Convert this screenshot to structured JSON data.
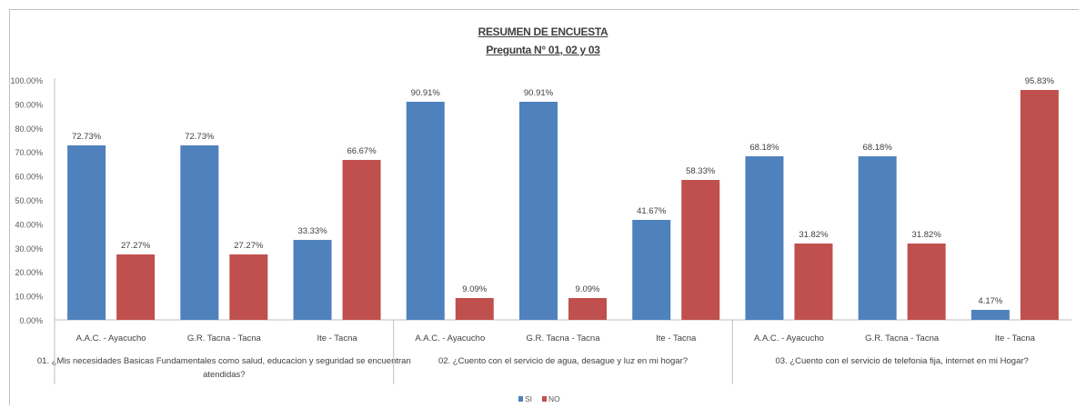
{
  "chart_data": {
    "type": "bar",
    "title": "RESUMEN DE ENCUESTA",
    "subtitle": "Pregunta N° 01, 02 y 03",
    "ylim": [
      0,
      100
    ],
    "yticks": [
      "0.00%",
      "10.00%",
      "20.00%",
      "30.00%",
      "40.00%",
      "50.00%",
      "60.00%",
      "70.00%",
      "80.00%",
      "90.00%",
      "100.00%"
    ],
    "groups": [
      {
        "question": [
          "01. ¿Mis necesidades Basicas Fundamentales como salud, educacion y seguridad se encuentran",
          "atendidas?"
        ],
        "categories": [
          "A.A.C. - Ayacucho",
          "G.R. Tacna - Tacna",
          "Ite - Tacna"
        ]
      },
      {
        "question": [
          "02. ¿Cuento con el servicio de agua, desague y luz en mi hogar?"
        ],
        "categories": [
          "A.A.C. - Ayacucho",
          "G.R. Tacna - Tacna",
          "Ite - Tacna"
        ]
      },
      {
        "question": [
          "03. ¿Cuento con el servicio de telefonia fija, internet en mi Hogar?"
        ],
        "categories": [
          "A.A.C. - Ayacucho",
          "G.R. Tacna - Tacna",
          "Ite - Tacna"
        ]
      }
    ],
    "series": [
      {
        "name": "SI",
        "color": "#4f81bd",
        "values": [
          72.73,
          72.73,
          33.33,
          90.91,
          90.91,
          41.67,
          68.18,
          68.18,
          4.17
        ],
        "labels": [
          "72.73%",
          "72.73%",
          "33.33%",
          "90.91%",
          "90.91%",
          "41.67%",
          "68.18%",
          "68.18%",
          "4.17%"
        ]
      },
      {
        "name": "NO",
        "color": "#c0504d",
        "values": [
          27.27,
          27.27,
          66.67,
          9.09,
          9.09,
          58.33,
          31.82,
          31.82,
          95.83
        ],
        "labels": [
          "27.27%",
          "27.27%",
          "66.67%",
          "9.09%",
          "9.09%",
          "58.33%",
          "31.82%",
          "31.82%",
          "95.83%"
        ]
      }
    ],
    "legend": "bottom-center",
    "grid": false
  }
}
